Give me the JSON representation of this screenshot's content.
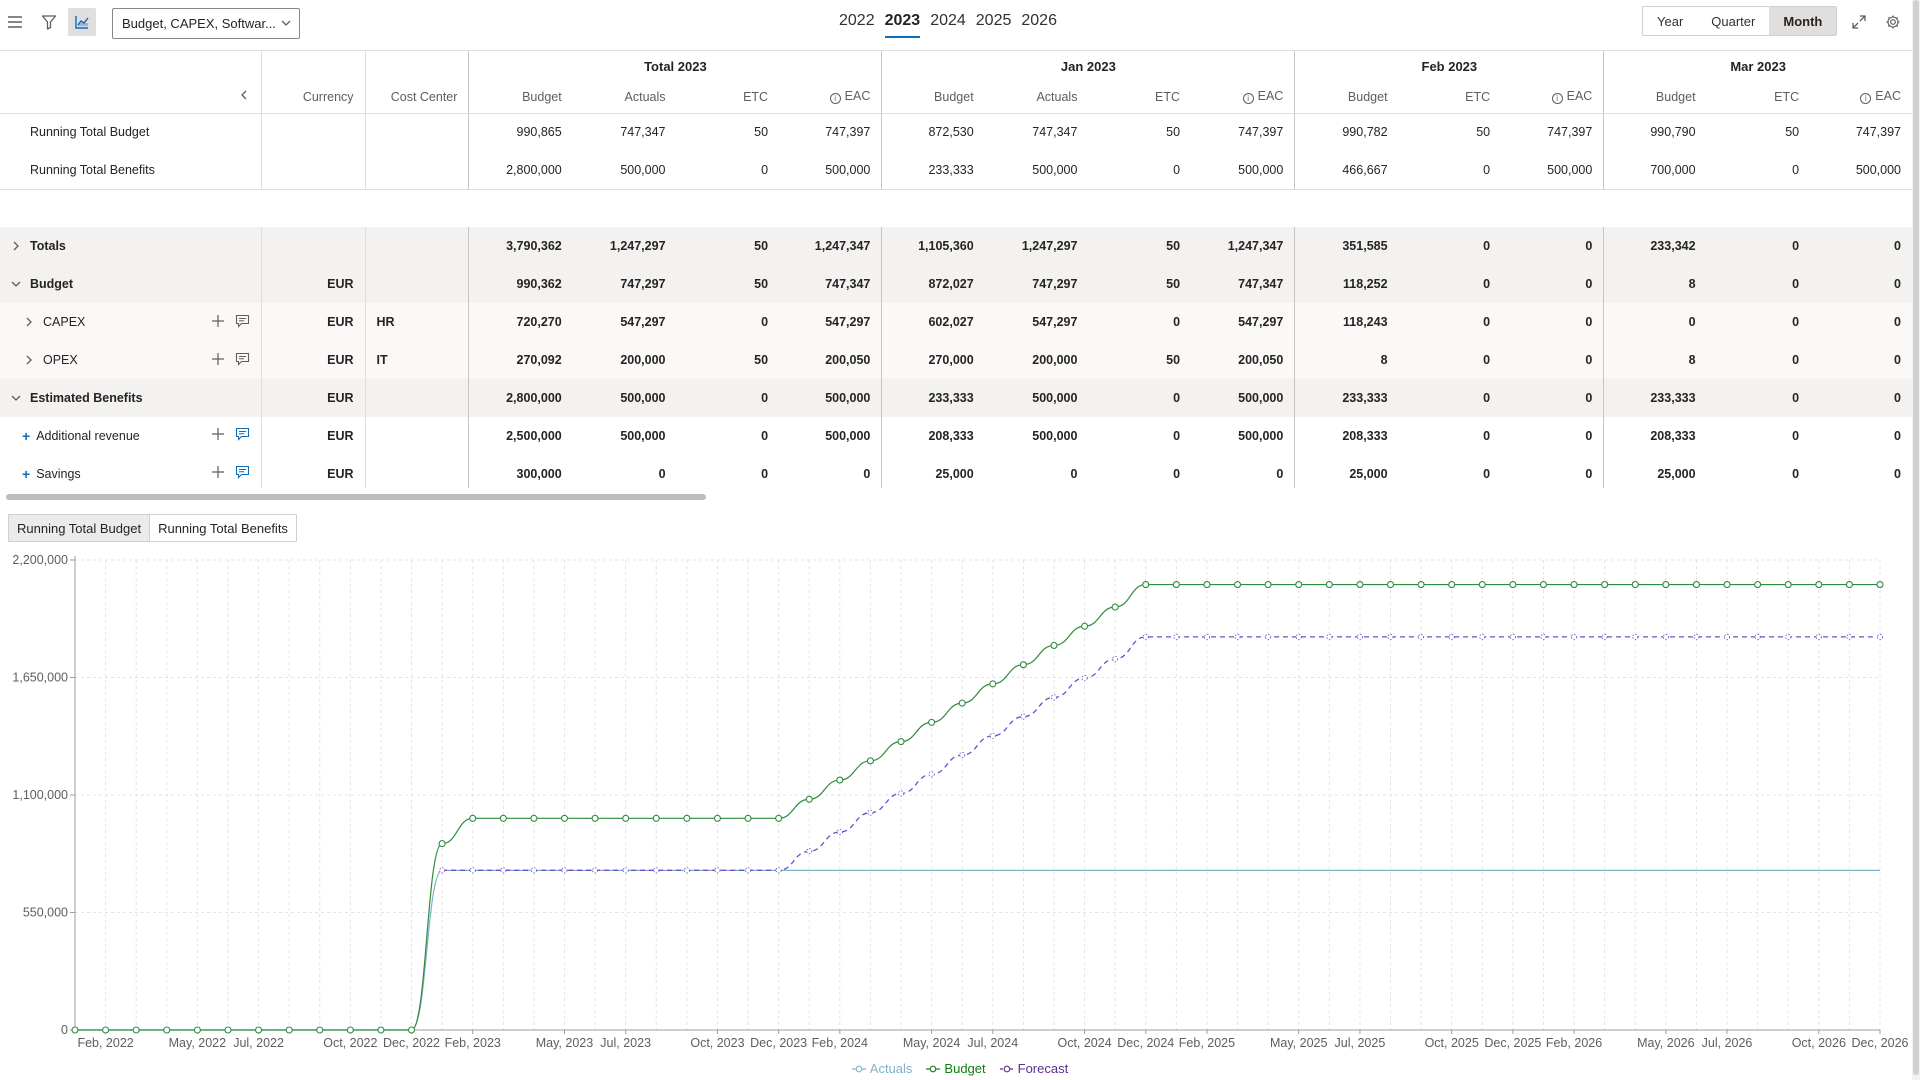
{
  "toolbar": {
    "scope_value": "Budget, CAPEX, Softwar...",
    "years": [
      "2022",
      "2023",
      "2024",
      "2025",
      "2026"
    ],
    "active_year": "2023",
    "granularity": [
      "Year",
      "Quarter",
      "Month"
    ],
    "active_granularity": "Month",
    "icons": [
      "menu-icon",
      "filter-icon",
      "chart-view-icon",
      "expand-icon",
      "settings-icon"
    ]
  },
  "grid": {
    "groups": [
      "Total 2023",
      "Jan 2023",
      "Feb 2023",
      "Mar 2023"
    ],
    "fixed_headers": [
      "Currency",
      "Cost Center"
    ],
    "total_cols": [
      "Budget",
      "Actuals",
      "ETC",
      "EAC"
    ],
    "jan_cols": [
      "Budget",
      "Actuals",
      "ETC",
      "EAC"
    ],
    "feb_cols": [
      "Budget",
      "ETC",
      "EAC"
    ],
    "mar_cols": [
      "Budget",
      "ETC",
      "EAC"
    ],
    "running": [
      {
        "name": "Running Total Budget",
        "vals": [
          "990,865",
          "747,347",
          "50",
          "747,397",
          "872,530",
          "747,347",
          "50",
          "747,397",
          "990,782",
          "50",
          "747,397",
          "990,790",
          "50",
          "747,397"
        ]
      },
      {
        "name": "Running Total Benefits",
        "vals": [
          "2,800,000",
          "500,000",
          "0",
          "500,000",
          "233,333",
          "500,000",
          "0",
          "500,000",
          "466,667",
          "0",
          "500,000",
          "700,000",
          "0",
          "500,000"
        ]
      }
    ],
    "rows": [
      {
        "name": "Totals",
        "style": "grey",
        "expander": "right",
        "currency": "",
        "cc": "",
        "vals": [
          "3,790,362",
          "1,247,297",
          "50",
          "1,247,347",
          "1,105,360",
          "1,247,297",
          "50",
          "1,247,347",
          "351,585",
          "0",
          "0",
          "233,342",
          "0",
          "0"
        ]
      },
      {
        "name": "Budget",
        "style": "grey",
        "expander": "down",
        "currency": "EUR",
        "cc": "",
        "vals": [
          "990,362",
          "747,297",
          "50",
          "747,347",
          "872,027",
          "747,297",
          "50",
          "747,347",
          "118,252",
          "0",
          "0",
          "8",
          "0",
          "0"
        ]
      },
      {
        "name": "CAPEX",
        "style": "light",
        "expander": "right",
        "currency": "EUR",
        "cc": "HR",
        "vals": [
          "720,270",
          "547,297",
          "0",
          "547,297",
          "602,027",
          "547,297",
          "0",
          "547,297",
          "118,243",
          "0",
          "0",
          "0",
          "0",
          "0"
        ]
      },
      {
        "name": "OPEX",
        "style": "light",
        "expander": "right",
        "currency": "EUR",
        "cc": "IT",
        "vals": [
          "270,092",
          "200,000",
          "50",
          "200,050",
          "270,000",
          "200,000",
          "50",
          "200,050",
          "8",
          "0",
          "0",
          "8",
          "0",
          "0"
        ]
      },
      {
        "name": "Estimated Benefits",
        "style": "grey",
        "expander": "down",
        "currency": "EUR",
        "cc": "",
        "vals": [
          "2,800,000",
          "500,000",
          "0",
          "500,000",
          "233,333",
          "500,000",
          "0",
          "500,000",
          "233,333",
          "0",
          "0",
          "233,333",
          "0",
          "0"
        ]
      },
      {
        "name": "Additional revenue",
        "style": "white",
        "expander": "plus",
        "currency": "EUR",
        "cc": "",
        "vals": [
          "2,500,000",
          "500,000",
          "0",
          "500,000",
          "208,333",
          "500,000",
          "0",
          "500,000",
          "208,333",
          "0",
          "0",
          "208,333",
          "0",
          "0"
        ]
      },
      {
        "name": "Savings",
        "style": "white",
        "expander": "plus",
        "currency": "EUR",
        "cc": "",
        "vals": [
          "300,000",
          "0",
          "0",
          "0",
          "25,000",
          "0",
          "0",
          "0",
          "25,000",
          "0",
          "0",
          "25,000",
          "0",
          "0"
        ]
      }
    ]
  },
  "chart_tabs": [
    "Running Total Budget",
    "Running Total Benefits"
  ],
  "active_chart_tab": "Running Total Budget",
  "colors": {
    "budget": "#2e8b3e",
    "actuals": "#7fb2c9",
    "forecast": "#6a4fc8",
    "legend_budget": "#107c10",
    "legend_forecast": "#5c2e91",
    "accent": "#0f6cbd"
  },
  "chart_data": {
    "type": "line",
    "ylim": [
      0,
      2200000
    ],
    "yticks": [
      0,
      550000,
      1100000,
      1650000,
      2200000
    ],
    "ytick_labels": [
      "0",
      "550,000",
      "1,100,000",
      "1,650,000",
      "2,200,000"
    ],
    "xtick_labels": [
      "Feb, 2022",
      "May, 2022",
      "Jul, 2022",
      "Oct, 2022",
      "Dec, 2022",
      "Feb, 2023",
      "May, 2023",
      "Jul, 2023",
      "Oct, 2023",
      "Dec, 2023",
      "Feb, 2024",
      "May, 2024",
      "Jul, 2024",
      "Oct, 2024",
      "Dec, 2024",
      "Feb, 2025",
      "May, 2025",
      "Jul, 2025",
      "Oct, 2025",
      "Dec, 2025",
      "Feb, 2026",
      "May, 2026",
      "Jul, 2026",
      "Oct, 2026",
      "Dec, 2026"
    ],
    "x_start": "Jan, 2022",
    "x_end": "Dec, 2026",
    "grid": true,
    "legend_position": "bottom",
    "series": [
      {
        "name": "Actuals",
        "values": [
          0,
          0,
          0,
          0,
          0,
          0,
          0,
          0,
          0,
          0,
          0,
          0,
          747347,
          747347,
          747347,
          747347,
          747347,
          747347,
          747347,
          747347,
          747347,
          747347,
          747347,
          747347,
          747347,
          747347,
          747347,
          747347,
          747347,
          747347,
          747347,
          747347,
          747347,
          747347,
          747347,
          747347,
          747347,
          747347,
          747347,
          747347,
          747347,
          747347,
          747347,
          747347,
          747347,
          747347,
          747347,
          747347,
          747347,
          747347,
          747347,
          747347,
          747347,
          747347,
          747347,
          747347,
          747347,
          747347,
          747347,
          747347
        ]
      },
      {
        "name": "Budget",
        "values": [
          0,
          0,
          0,
          0,
          0,
          0,
          0,
          0,
          0,
          0,
          0,
          0,
          872530,
          990782,
          990790,
          990790,
          990790,
          990790,
          990790,
          990790,
          990790,
          990790,
          990790,
          990790,
          1080000,
          1170000,
          1260000,
          1350000,
          1440000,
          1530000,
          1620000,
          1710000,
          1800000,
          1890000,
          1980000,
          2085000,
          2085000,
          2085000,
          2085000,
          2085000,
          2085000,
          2085000,
          2085000,
          2085000,
          2085000,
          2085000,
          2085000,
          2085000,
          2085000,
          2085000,
          2085000,
          2085000,
          2085000,
          2085000,
          2085000,
          2085000,
          2085000,
          2085000,
          2085000,
          2085000
        ]
      },
      {
        "name": "Forecast",
        "values": [
          null,
          null,
          null,
          null,
          null,
          null,
          null,
          null,
          null,
          null,
          null,
          null,
          747397,
          747397,
          747397,
          747397,
          747397,
          747397,
          747397,
          747397,
          747397,
          747397,
          747397,
          747397,
          837000,
          927000,
          1017000,
          1107000,
          1197000,
          1287000,
          1377000,
          1467000,
          1557000,
          1647000,
          1737000,
          1840000,
          1840000,
          1840000,
          1840000,
          1840000,
          1840000,
          1840000,
          1840000,
          1840000,
          1840000,
          1840000,
          1840000,
          1840000,
          1840000,
          1840000,
          1840000,
          1840000,
          1840000,
          1840000,
          1840000,
          1840000,
          1840000,
          1840000,
          1840000,
          1840000
        ]
      }
    ]
  }
}
